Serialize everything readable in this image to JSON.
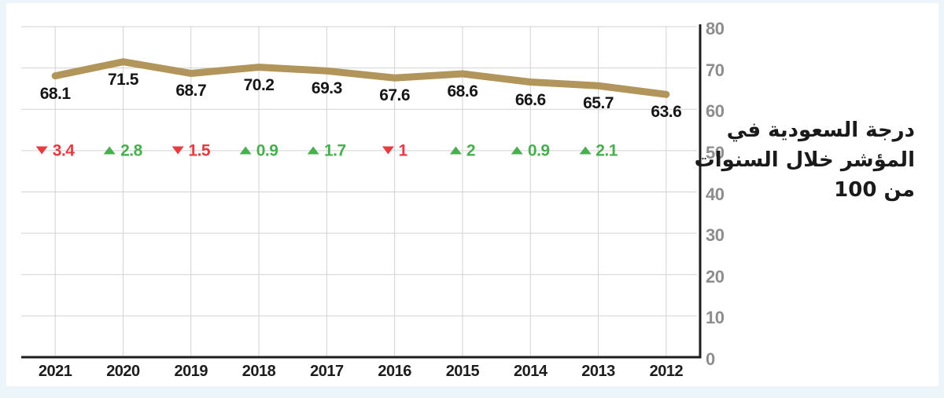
{
  "page": {
    "background_color": "#ecf6fa",
    "card_color": "#ffffff"
  },
  "chart_data": {
    "type": "line",
    "title": "",
    "caption": {
      "line1": "درجة السعودية في",
      "line2": "المؤشر خلال السنوات",
      "line3": "من 100"
    },
    "categories": [
      "2021",
      "2020",
      "2019",
      "2018",
      "2017",
      "2016",
      "2015",
      "2014",
      "2013",
      "2012"
    ],
    "values": [
      68.1,
      71.5,
      68.7,
      70.2,
      69.3,
      67.6,
      68.6,
      66.6,
      65.7,
      63.6
    ],
    "value_labels": [
      "68.1",
      "71.5",
      "68.7",
      "70.2",
      "69.3",
      "67.6",
      "68.6",
      "66.6",
      "65.7",
      "63.6"
    ],
    "changes": [
      {
        "direction": "down",
        "icon": "triangle-down-icon",
        "label": "3.4"
      },
      {
        "direction": "up",
        "icon": "triangle-up-icon",
        "label": "2.8"
      },
      {
        "direction": "down",
        "icon": "triangle-down-icon",
        "label": "1.5"
      },
      {
        "direction": "up",
        "icon": "triangle-up-icon",
        "label": "0.9"
      },
      {
        "direction": "up",
        "icon": "triangle-up-icon",
        "label": "1.7"
      },
      {
        "direction": "down",
        "icon": "triangle-down-icon",
        "label": "1"
      },
      {
        "direction": "up",
        "icon": "triangle-up-icon",
        "label": "2"
      },
      {
        "direction": "up",
        "icon": "triangle-up-icon",
        "label": "0.9"
      },
      {
        "direction": "up",
        "icon": "triangle-up-icon",
        "label": "2.1"
      }
    ],
    "changes_row_value": 50,
    "y_ticks": [
      {
        "v": 80,
        "label": "80"
      },
      {
        "v": 70,
        "label": "70"
      },
      {
        "v": 60,
        "label": "60"
      },
      {
        "v": 50,
        "label": "50"
      },
      {
        "v": 40,
        "label": "40"
      },
      {
        "v": 30,
        "label": "30"
      },
      {
        "v": 20,
        "label": "20"
      },
      {
        "v": 10,
        "label": "10"
      },
      {
        "v": 0,
        "label": "0"
      }
    ],
    "ylim": [
      0,
      80
    ],
    "grid": true,
    "legend": null,
    "y_axis_side": "right",
    "x_axis_side": "bottom",
    "line_color": "#b2955a",
    "up_color": "#48af4e",
    "down_color": "#e63c41"
  }
}
